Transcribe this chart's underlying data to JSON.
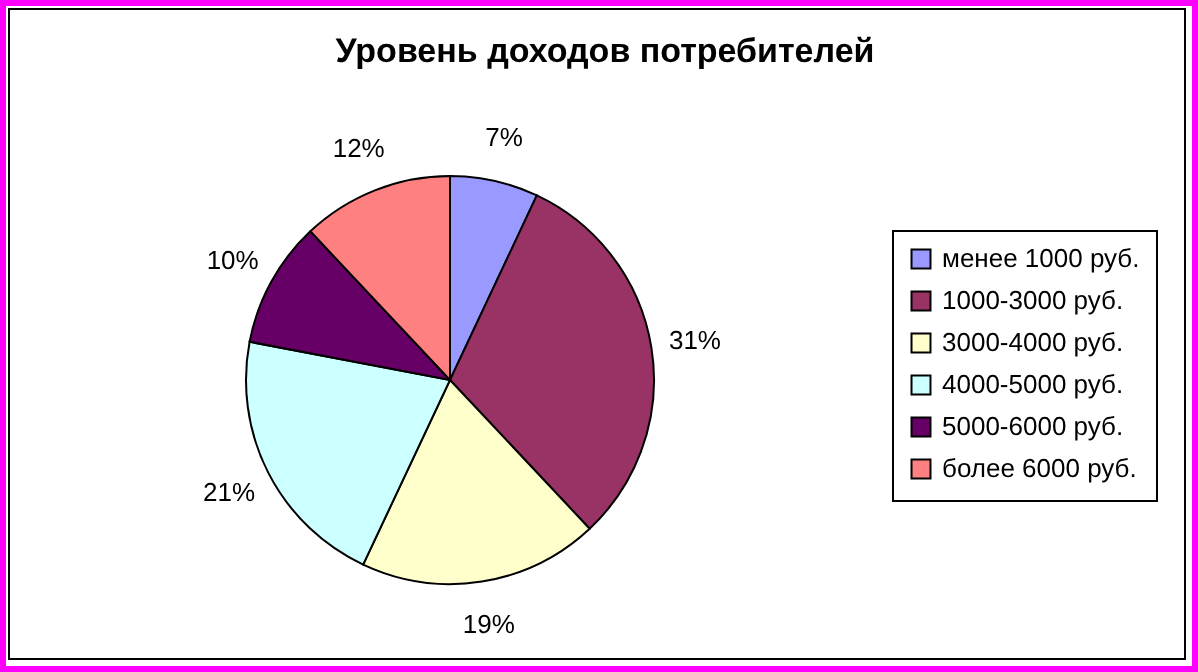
{
  "chart_data": {
    "type": "pie",
    "title": "Уровень доходов потребителей",
    "categories": [
      "менее 1000 руб.",
      "1000-3000 руб.",
      "3000-4000 руб.",
      "4000-5000 руб.",
      "5000-6000 руб.",
      "более 6000 руб."
    ],
    "values": [
      7,
      31,
      19,
      21,
      10,
      12
    ],
    "value_labels": [
      "7%",
      "31%",
      "19%",
      "21%",
      "10%",
      "12%"
    ],
    "colors": [
      "#9999ff",
      "#993366",
      "#ffffcc",
      "#ccffff",
      "#660066",
      "#ff8080"
    ],
    "legend": "right"
  }
}
